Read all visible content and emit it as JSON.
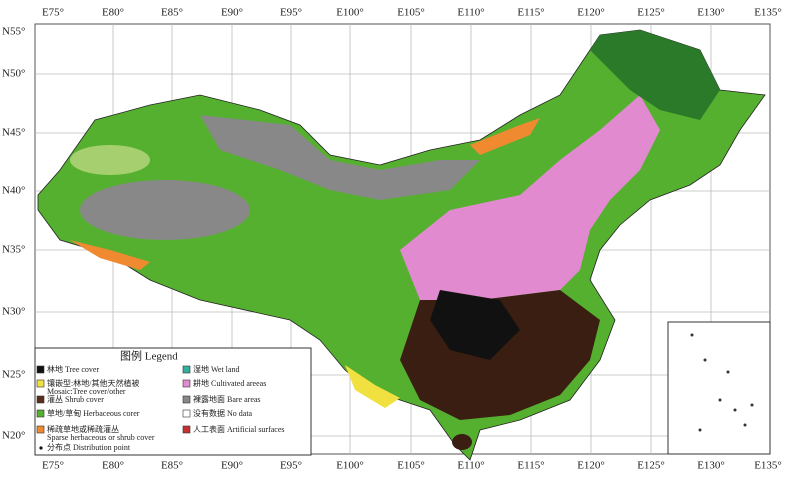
{
  "longitude_labels": [
    "E75°",
    "E80°",
    "E85°",
    "E90°",
    "E95°",
    "E100°",
    "E105°",
    "E110°",
    "E115°",
    "E120°",
    "E125°",
    "E130°",
    "E135°"
  ],
  "latitude_labels": [
    "N55°",
    "N50°",
    "N45°",
    "N40°",
    "N35°",
    "N30°",
    "N25°",
    "N20°"
  ],
  "legend": {
    "title": "图例 Legend",
    "items": [
      {
        "label": "林地 Tree cover",
        "color": "#111111"
      },
      {
        "label": "镶嵌型:林地/其他天然植被",
        "label_en": "Mosaic:Tree cover/other",
        "color": "#f0e040"
      },
      {
        "label": "灌丛 Shrub cover",
        "color": "#5a2d1a"
      },
      {
        "label": "草地/草甸 Herbaceous corer",
        "color": "#55b030"
      },
      {
        "label": "稀疏草地或稀疏灌丛",
        "label_en": "Sparse herbaceous or shrub cover",
        "color": "#f08a30"
      },
      {
        "label": "湿地 Wet land",
        "color": "#2fb0a0"
      },
      {
        "label": "耕地 Cultivated areeas",
        "color": "#e28ad0"
      },
      {
        "label": "裸露地面 Bare areas",
        "color": "#888888"
      },
      {
        "label": "没有数据 No data",
        "color": "#ffffff"
      },
      {
        "label": "人工表面 Artificial surfaces",
        "color": "#c83030"
      }
    ],
    "point_label": "分布点 Distribution point"
  }
}
